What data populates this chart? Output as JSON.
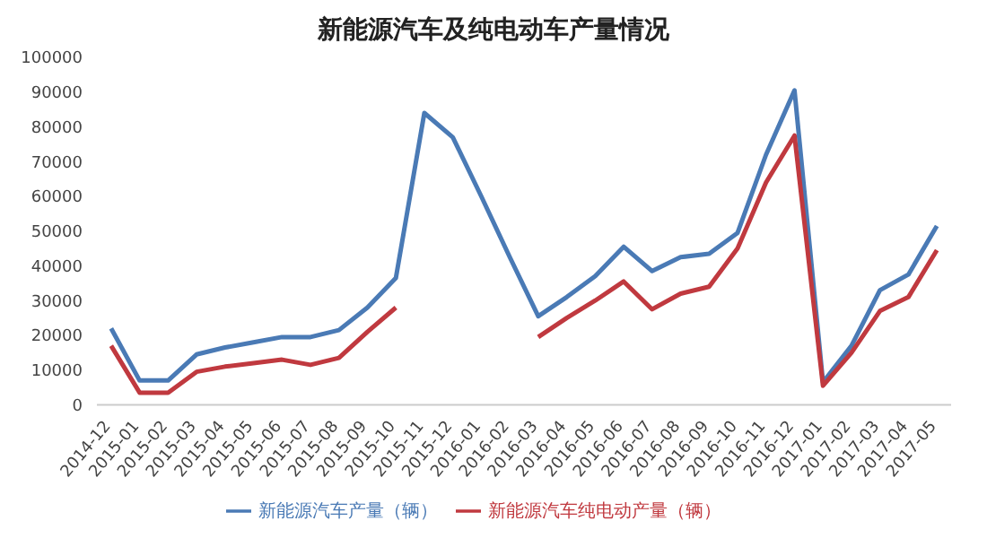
{
  "chart_data": {
    "type": "line",
    "title": "新能源汽车及纯电动车产量情况",
    "categories": [
      "2014-12",
      "2015-01",
      "2015-02",
      "2015-03",
      "2015-04",
      "2015-05",
      "2015-06",
      "2015-07",
      "2015-08",
      "2015-09",
      "2015-10",
      "2015-11",
      "2015-12",
      "2016-01",
      "2016-02",
      "2016-03",
      "2016-04",
      "2016-05",
      "2016-06",
      "2016-07",
      "2016-08",
      "2016-09",
      "2016-10",
      "2016-11",
      "2016-12",
      "2017-01",
      "2017-02",
      "2017-03",
      "2017-04",
      "2017-05"
    ],
    "series": [
      {
        "name": "新能源汽车产量（辆）",
        "color": "#4a7ab5",
        "values": [
          22000,
          7000,
          7000,
          14500,
          16500,
          18000,
          19500,
          19500,
          21500,
          28000,
          36500,
          84000,
          77000,
          60000,
          42500,
          25500,
          31000,
          37000,
          45500,
          38500,
          42500,
          43500,
          49500,
          72000,
          90500,
          6500,
          17000,
          33000,
          37500,
          51500
        ]
      },
      {
        "name": "新能源汽车纯电动产量（辆）",
        "color": "#c0393f",
        "values": [
          17000,
          3500,
          3500,
          9500,
          11000,
          12000,
          13000,
          11500,
          13500,
          21000,
          28000,
          null,
          null,
          null,
          null,
          19500,
          25000,
          30000,
          35500,
          27500,
          32000,
          34000,
          45000,
          64000,
          77500,
          5500,
          15000,
          27000,
          31000,
          44500
        ]
      }
    ],
    "ylim": [
      0,
      100000
    ],
    "yticks": [
      0,
      10000,
      20000,
      30000,
      40000,
      50000,
      60000,
      70000,
      80000,
      90000,
      100000
    ],
    "grid": false,
    "legend": "bottom",
    "marker": "none",
    "line_style": "solid"
  }
}
